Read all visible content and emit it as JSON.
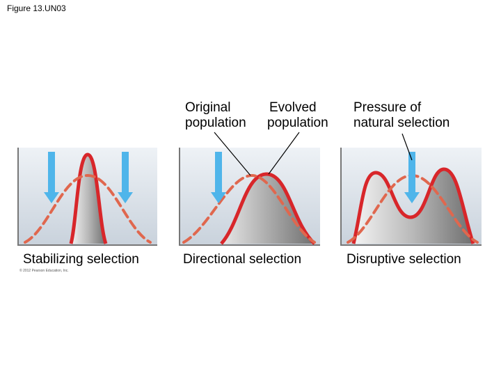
{
  "figure_label": "Figure 13.UN03",
  "legend": {
    "original": [
      "Original",
      "population"
    ],
    "evolved": [
      "Evolved",
      "population"
    ],
    "pressure": [
      "Pressure of",
      "natural selection"
    ]
  },
  "captions": {
    "stabilizing": "Stabilizing selection",
    "directional": "Directional selection",
    "disruptive": "Disruptive selection"
  },
  "copyright": "© 2012 Pearson Education, Inc.",
  "colors": {
    "curve_red": "#d8262a",
    "dashed_orange": "#e0674e",
    "arrow_blue": "#4fb5ea",
    "panel_bg": "#dfe6ee"
  }
}
